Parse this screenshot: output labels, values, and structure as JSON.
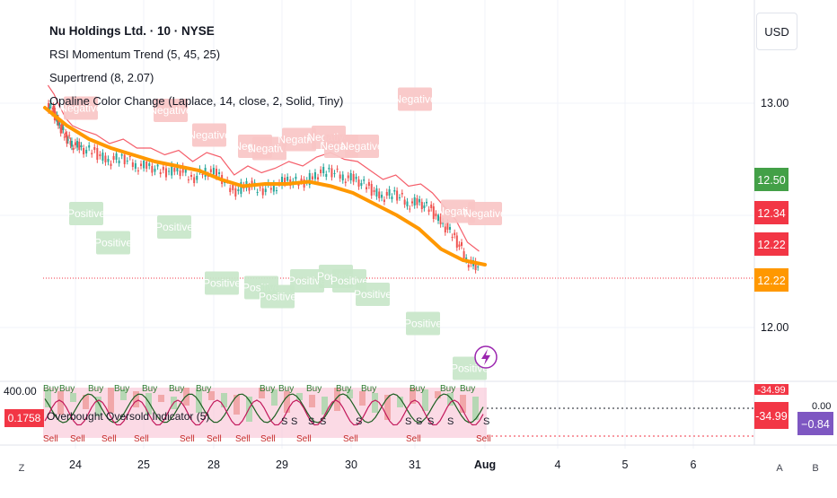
{
  "header": {
    "symbol_title": "Nu Holdings Ltd. · 10 · NYSE",
    "indicators": [
      "RSI Momentum Trend (5, 45, 25)",
      "Supertrend (8, 2.07)",
      "Opaline Color Change (Laplace, 14, close, 2, Solid, Tiny)"
    ],
    "currency": "USD"
  },
  "oscillator": {
    "legend": "Overbought Oversold Indicator (5)",
    "left_value_label": "400.00",
    "left_badge": "0.1758",
    "right_badge_top": "-34.99",
    "right_badge_bottom": "-34.99",
    "far_right_top": "0.00",
    "far_right_badge": "−0.84",
    "buy_label": "Buy",
    "sell_label": "Sell",
    "s_label": "S",
    "colors": {
      "red": "#f23645",
      "purple": "#7e57c2",
      "buy_green": "#a5d6a7",
      "sell_red": "#f8bbd0"
    }
  },
  "corner": {
    "left": "Z",
    "right_a": "A",
    "right_b": "B"
  },
  "chart_data": {
    "type": "line",
    "price_axis_ticks": [
      "13.00",
      "12.00"
    ],
    "price_badges": [
      {
        "label": "12.50",
        "color": "#43a047"
      },
      {
        "label": "12.34",
        "color": "#f23645"
      },
      {
        "label": "12.22",
        "color": "#f23645"
      },
      {
        "label": "12.22",
        "color": "#ff9800"
      }
    ],
    "x_tick_labels": [
      "24",
      "25",
      "28",
      "29",
      "30",
      "31",
      "Aug",
      "4",
      "5",
      "6"
    ],
    "ylim": [
      11.78,
      13.3
    ],
    "price_series": {
      "sessions": [
        [
          13.0,
          12.96,
          12.9,
          12.85,
          12.82
        ],
        [
          12.8,
          12.78,
          12.74,
          12.76,
          12.72
        ],
        [
          12.72,
          12.69,
          12.71,
          12.66,
          12.7
        ],
        [
          12.68,
          12.6,
          12.64,
          12.61,
          12.63
        ],
        [
          12.66,
          12.64,
          12.68,
          12.7,
          12.67
        ],
        [
          12.66,
          12.62,
          12.58,
          12.6,
          12.55
        ],
        [
          12.56,
          12.52,
          12.46,
          12.4,
          12.3,
          12.26
        ]
      ]
    },
    "trend_line": [
      12.98,
      12.9,
      12.84,
      12.8,
      12.77,
      12.74,
      12.72,
      12.7,
      12.66,
      12.63,
      12.64,
      12.64,
      12.65,
      12.63,
      12.6,
      12.55,
      12.5,
      12.44,
      12.35,
      12.3,
      12.28
    ],
    "annotations": [
      {
        "text": "Negative",
        "kind": "negative",
        "price": 12.87
      },
      {
        "text": "Negative",
        "kind": "negative",
        "price": 12.86
      },
      {
        "text": "Negative",
        "kind": "negative",
        "price": 12.75
      },
      {
        "text": "Negative",
        "kind": "negative",
        "price": 12.7
      },
      {
        "text": "Negative",
        "kind": "negative",
        "price": 12.69
      },
      {
        "text": "Negative",
        "kind": "negative",
        "price": 12.73
      },
      {
        "text": "Negative",
        "kind": "negative",
        "price": 12.74
      },
      {
        "text": "Negative",
        "kind": "negative",
        "price": 12.7
      },
      {
        "text": "Negative",
        "kind": "negative",
        "price": 12.7
      },
      {
        "text": "Negative",
        "kind": "negative",
        "price": 12.91
      },
      {
        "text": "Negative",
        "kind": "negative",
        "price": 12.41
      },
      {
        "text": "Negative",
        "kind": "negative",
        "price": 12.4
      },
      {
        "text": "Positive",
        "kind": "positive",
        "price": 12.6
      },
      {
        "text": "Positive",
        "kind": "positive",
        "price": 12.47
      },
      {
        "text": "Positive",
        "kind": "positive",
        "price": 12.54
      },
      {
        "text": "Positive",
        "kind": "positive",
        "price": 12.29
      },
      {
        "text": "Positive",
        "kind": "positive",
        "price": 12.27
      },
      {
        "text": "Positive",
        "kind": "positive",
        "price": 12.23
      },
      {
        "text": "Positive",
        "kind": "positive",
        "price": 12.3
      },
      {
        "text": "Positive",
        "kind": "positive",
        "price": 12.32
      },
      {
        "text": "Positive",
        "kind": "positive",
        "price": 12.3
      },
      {
        "text": "Positive",
        "kind": "positive",
        "price": 12.24
      },
      {
        "text": "Positive",
        "kind": "positive",
        "price": 12.11
      },
      {
        "text": "Positive",
        "kind": "positive",
        "price": 11.91
      }
    ],
    "colors": {
      "candle_up": "#26a69a",
      "candle_down": "#ef5350",
      "trend": "#ff9800",
      "supertrend_down": "#f23645",
      "supertrend_up": "#43a047",
      "negative_label": "#f8c6c6",
      "positive_label": "#c8e6c9",
      "flash": "#9c27b0"
    }
  }
}
